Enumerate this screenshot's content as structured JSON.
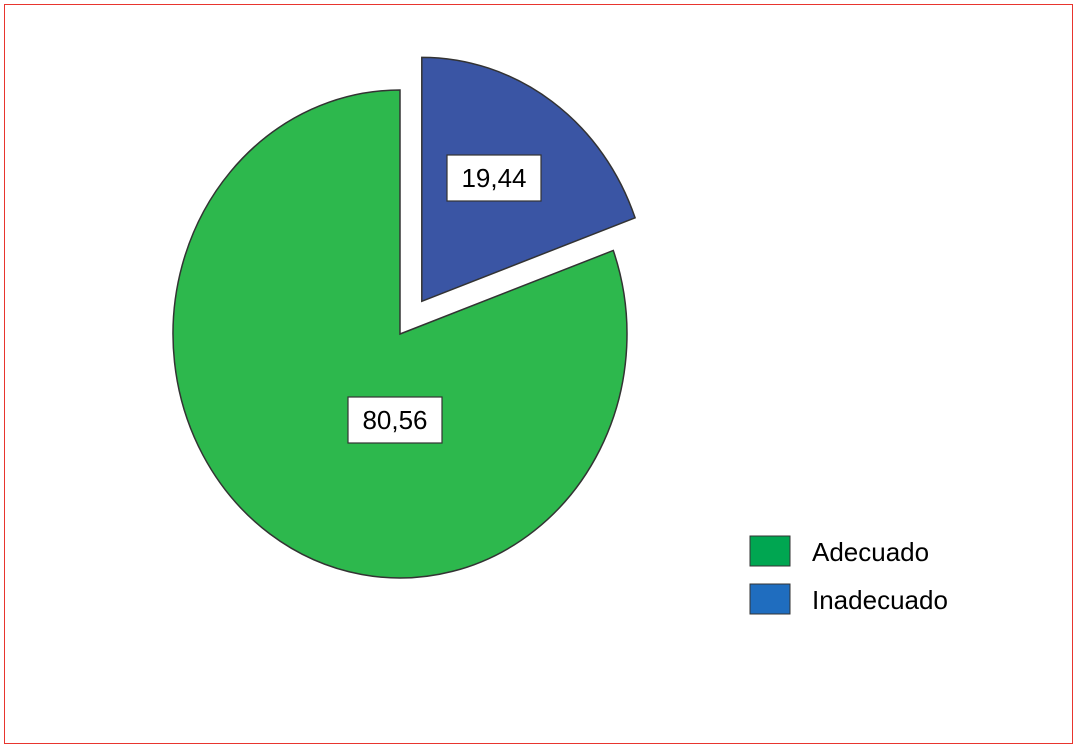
{
  "chart_data": {
    "type": "pie",
    "slices": [
      {
        "label": "Adecuado",
        "value": 80.56,
        "color": "#2db84d",
        "exploded": false
      },
      {
        "label": "Inadecuado",
        "value": 19.44,
        "color": "#3a55a4",
        "exploded": true
      }
    ],
    "data_labels": [
      "80,56",
      "19,44"
    ],
    "legend": {
      "placement": "bottom-right",
      "entries": [
        {
          "label": "Adecuado",
          "color": "#00a651"
        },
        {
          "label": "Inadecuado",
          "color": "#1f6dbf"
        }
      ]
    },
    "start_angle_deg": 0,
    "direction": "clockwise"
  },
  "colors": {
    "frame_border": "#e8352e"
  }
}
